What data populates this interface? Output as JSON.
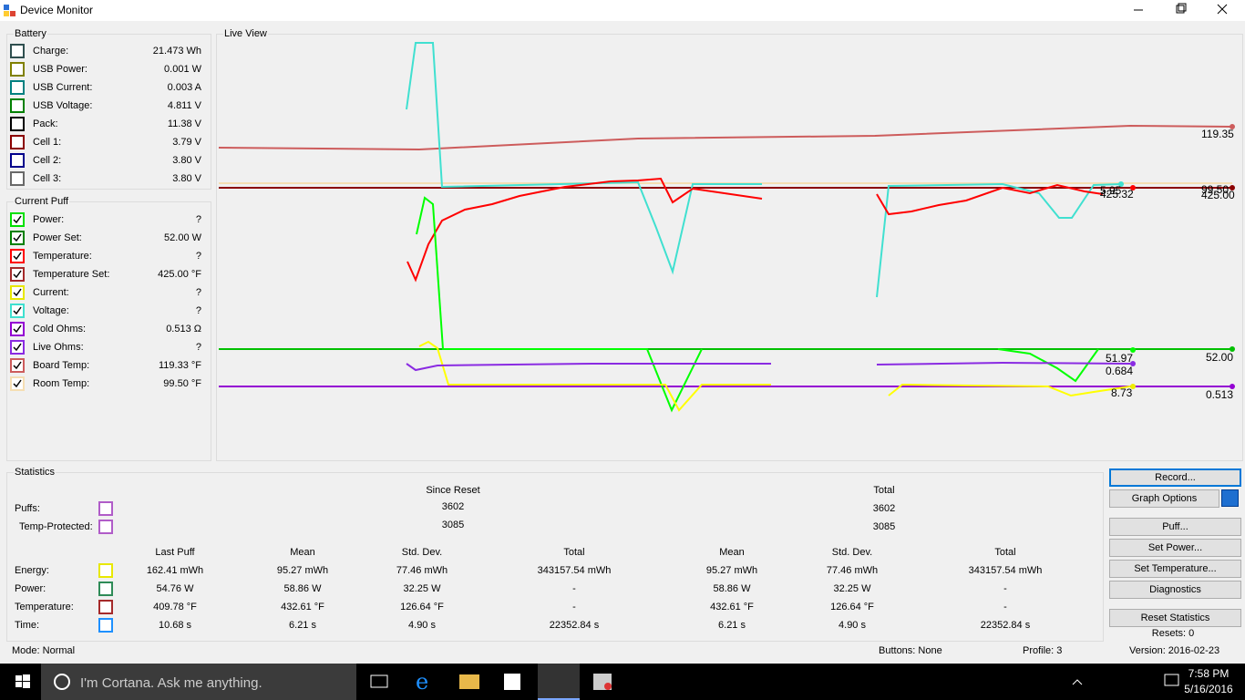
{
  "window": {
    "title": "Device Monitor"
  },
  "battery": {
    "title": "Battery",
    "rows": [
      {
        "label": "Charge:",
        "value": "21.473 Wh",
        "color": "#2f4f4f",
        "checked": false
      },
      {
        "label": "USB Power:",
        "value": "0.001 W",
        "color": "#808000",
        "checked": false
      },
      {
        "label": "USB Current:",
        "value": "0.003 A",
        "color": "#008080",
        "checked": false
      },
      {
        "label": "USB Voltage:",
        "value": "4.811 V",
        "color": "#008000",
        "checked": false
      },
      {
        "label": "Pack:",
        "value": "11.38 V",
        "color": "#000000",
        "checked": false
      },
      {
        "label": "Cell 1:",
        "value": "3.79 V",
        "color": "#8b0000",
        "checked": false
      },
      {
        "label": "Cell 2:",
        "value": "3.80 V",
        "color": "#00008b",
        "checked": false
      },
      {
        "label": "Cell 3:",
        "value": "3.80 V",
        "color": "#696969",
        "checked": false
      }
    ]
  },
  "current_puff": {
    "title": "Current Puff",
    "rows": [
      {
        "label": "Power:",
        "value": "?",
        "color": "#00e000",
        "checked": true
      },
      {
        "label": "Power Set:",
        "value": "52.00 W",
        "color": "#008000",
        "checked": true
      },
      {
        "label": "Temperature:",
        "value": "?",
        "color": "#ff0000",
        "checked": true
      },
      {
        "label": "Temperature Set:",
        "value": "425.00 °F",
        "color": "#a52a2a",
        "checked": true
      },
      {
        "label": "Current:",
        "value": "?",
        "color": "#e8e800",
        "checked": true
      },
      {
        "label": "Voltage:",
        "value": "?",
        "color": "#40e0d0",
        "checked": true
      },
      {
        "label": "Cold Ohms:",
        "value": "0.513 Ω",
        "color": "#9400d3",
        "checked": true
      },
      {
        "label": "Live Ohms:",
        "value": "?",
        "color": "#8a2be2",
        "checked": true
      },
      {
        "label": "Board Temp:",
        "value": "119.33 °F",
        "color": "#cd5c5c",
        "checked": true
      },
      {
        "label": "Room Temp:",
        "value": "99.50 °F",
        "color": "#f5deb3",
        "checked": true
      }
    ]
  },
  "live_view": {
    "title": "Live View",
    "labels": [
      "119.35",
      "99.50",
      "425.00",
      "425.32",
      "5.95",
      "51.97",
      "52.00",
      "0.684",
      "8.73",
      "0.513"
    ]
  },
  "statistics": {
    "title": "Statistics",
    "since_reset": "Since Reset",
    "total": "Total",
    "puffs": [
      {
        "label": "Puffs:",
        "since_reset": "3602",
        "total": "3602",
        "color": "#b05cc8"
      },
      {
        "label": "Temp-Protected:",
        "since_reset": "3085",
        "total": "3085",
        "color": "#b05cc8"
      }
    ],
    "columns": [
      "Last Puff",
      "Mean",
      "Std. Dev.",
      "Total",
      "Mean",
      "Std. Dev.",
      "Total"
    ],
    "rows": [
      {
        "label": "Energy:",
        "color": "#e8e800",
        "cells": [
          "162.41 mWh",
          "95.27 mWh",
          "77.46 mWh",
          "343157.54 mWh",
          "95.27 mWh",
          "77.46 mWh",
          "343157.54 mWh"
        ]
      },
      {
        "label": "Power:",
        "color": "#2e8b57",
        "cells": [
          "54.76 W",
          "58.86 W",
          "32.25 W",
          "-",
          "58.86 W",
          "32.25 W",
          "-"
        ]
      },
      {
        "label": "Temperature:",
        "color": "#a52a2a",
        "cells": [
          "409.78 °F",
          "432.61 °F",
          "126.64 °F",
          "-",
          "432.61 °F",
          "126.64 °F",
          "-"
        ]
      },
      {
        "label": "Time:",
        "color": "#1e90ff",
        "cells": [
          "10.68 s",
          "6.21 s",
          "4.90 s",
          "22352.84 s",
          "6.21 s",
          "4.90 s",
          "22352.84 s"
        ]
      }
    ]
  },
  "buttons": [
    "Record...",
    "Graph Options",
    "Puff...",
    "Set Power...",
    "Set Temperature...",
    "Diagnostics",
    "Reset Statistics"
  ],
  "resets": "Resets: 0",
  "status": {
    "mode": "Mode: Normal",
    "buttons": "Buttons: None",
    "profile": "Profile: 3",
    "version": "Version: 2016-02-23"
  },
  "taskbar": {
    "search": "I'm Cortana. Ask me anything.",
    "time": "7:58 PM",
    "date": "5/16/2016"
  }
}
